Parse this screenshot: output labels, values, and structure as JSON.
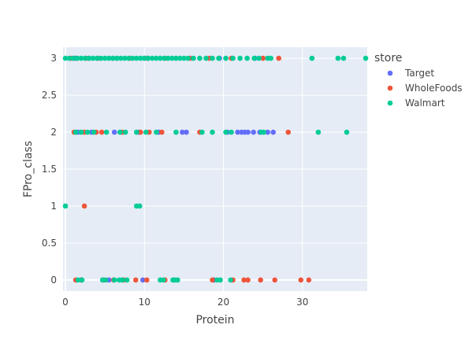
{
  "chart_data": {
    "type": "scatter",
    "xlabel": "Protein",
    "ylabel": "FPro_class",
    "xlim": [
      -0.3,
      38.2
    ],
    "ylim": [
      -0.15,
      3.15
    ],
    "x_ticks": [
      0,
      10,
      20,
      30
    ],
    "y_ticks": [
      0,
      0.5,
      1,
      1.5,
      2,
      2.5,
      3
    ],
    "x_tick_labels": [
      "0",
      "10",
      "20",
      "30"
    ],
    "y_tick_labels": [
      "0",
      "0.5",
      "1",
      "1.5",
      "2",
      "2.5",
      "3"
    ],
    "legend": {
      "title": "store",
      "placement": "right"
    },
    "colors": {
      "plot_bg": "#E5ECF6",
      "grid": "#ffffff"
    },
    "series": [
      {
        "name": "Target",
        "color": "#636EFA",
        "points": [
          [
            1.2,
            3
          ],
          [
            3.0,
            3
          ],
          [
            6.5,
            3
          ],
          [
            10.0,
            3
          ],
          [
            14.0,
            3
          ],
          [
            19.5,
            3
          ],
          [
            24.0,
            3
          ],
          [
            1.6,
            2
          ],
          [
            3.3,
            2
          ],
          [
            6.2,
            2
          ],
          [
            9.3,
            2
          ],
          [
            11.8,
            2
          ],
          [
            14.8,
            2
          ],
          [
            15.3,
            2
          ],
          [
            20.5,
            2
          ],
          [
            21.8,
            2
          ],
          [
            22.3,
            2
          ],
          [
            22.7,
            2
          ],
          [
            23.1,
            2
          ],
          [
            23.8,
            2
          ],
          [
            24.6,
            2
          ],
          [
            25.6,
            2
          ],
          [
            26.3,
            2
          ],
          [
            2.0,
            0
          ],
          [
            5.5,
            0
          ],
          [
            9.8,
            0
          ],
          [
            13.7,
            0
          ],
          [
            18.8,
            0
          ]
        ]
      },
      {
        "name": "WholeFoods",
        "color": "#EF553B",
        "points": [
          [
            0.7,
            3
          ],
          [
            1.5,
            3
          ],
          [
            2.6,
            3
          ],
          [
            4.1,
            3
          ],
          [
            6.0,
            3
          ],
          [
            8.1,
            3
          ],
          [
            10.4,
            3
          ],
          [
            12.6,
            3
          ],
          [
            15.8,
            3
          ],
          [
            18.2,
            3
          ],
          [
            21.0,
            3
          ],
          [
            25.0,
            3
          ],
          [
            27.0,
            3
          ],
          [
            1.1,
            2
          ],
          [
            2.4,
            2
          ],
          [
            3.9,
            2
          ],
          [
            4.6,
            2
          ],
          [
            7.2,
            2
          ],
          [
            9.5,
            2
          ],
          [
            10.6,
            2
          ],
          [
            12.2,
            2
          ],
          [
            17.0,
            2
          ],
          [
            28.2,
            2
          ],
          [
            2.4,
            1
          ],
          [
            1.3,
            0
          ],
          [
            2.0,
            0
          ],
          [
            4.8,
            0
          ],
          [
            6.1,
            0
          ],
          [
            7.4,
            0
          ],
          [
            8.9,
            0
          ],
          [
            10.3,
            0
          ],
          [
            12.6,
            0
          ],
          [
            18.6,
            0
          ],
          [
            21.2,
            0
          ],
          [
            22.6,
            0
          ],
          [
            23.1,
            0
          ],
          [
            24.7,
            0
          ],
          [
            26.5,
            0
          ],
          [
            29.8,
            0
          ],
          [
            30.8,
            0
          ]
        ]
      },
      {
        "name": "Walmart",
        "color": "#00CC96",
        "points": [
          [
            0.0,
            3
          ],
          [
            0.5,
            3
          ],
          [
            1.0,
            3
          ],
          [
            1.5,
            3
          ],
          [
            2.0,
            3
          ],
          [
            2.5,
            3
          ],
          [
            3.0,
            3
          ],
          [
            3.5,
            3
          ],
          [
            4.0,
            3
          ],
          [
            4.5,
            3
          ],
          [
            5.0,
            3
          ],
          [
            5.5,
            3
          ],
          [
            6.0,
            3
          ],
          [
            6.5,
            3
          ],
          [
            7.0,
            3
          ],
          [
            7.5,
            3
          ],
          [
            8.0,
            3
          ],
          [
            8.5,
            3
          ],
          [
            9.0,
            3
          ],
          [
            9.5,
            3
          ],
          [
            10.0,
            3
          ],
          [
            10.5,
            3
          ],
          [
            11.0,
            3
          ],
          [
            11.5,
            3
          ],
          [
            12.0,
            3
          ],
          [
            12.5,
            3
          ],
          [
            13.0,
            3
          ],
          [
            13.5,
            3
          ],
          [
            14.0,
            3
          ],
          [
            14.5,
            3
          ],
          [
            15.0,
            3
          ],
          [
            15.5,
            3
          ],
          [
            16.2,
            3
          ],
          [
            17.0,
            3
          ],
          [
            17.8,
            3
          ],
          [
            18.6,
            3
          ],
          [
            19.4,
            3
          ],
          [
            20.3,
            3
          ],
          [
            21.2,
            3
          ],
          [
            22.1,
            3
          ],
          [
            23.0,
            3
          ],
          [
            23.9,
            3
          ],
          [
            24.5,
            3
          ],
          [
            25.6,
            3
          ],
          [
            26.0,
            3
          ],
          [
            31.2,
            3
          ],
          [
            34.5,
            3
          ],
          [
            35.2,
            3
          ],
          [
            38.0,
            3
          ],
          [
            1.3,
            2
          ],
          [
            2.0,
            2
          ],
          [
            2.8,
            2
          ],
          [
            3.6,
            2
          ],
          [
            5.2,
            2
          ],
          [
            6.9,
            2
          ],
          [
            7.6,
            2
          ],
          [
            9.0,
            2
          ],
          [
            10.2,
            2
          ],
          [
            11.5,
            2
          ],
          [
            14.0,
            2
          ],
          [
            17.3,
            2
          ],
          [
            18.6,
            2
          ],
          [
            20.3,
            2
          ],
          [
            21.0,
            2
          ],
          [
            24.8,
            2
          ],
          [
            25.1,
            2
          ],
          [
            32.0,
            2
          ],
          [
            35.6,
            2
          ],
          [
            0.0,
            1
          ],
          [
            9.0,
            1
          ],
          [
            9.4,
            1
          ],
          [
            1.6,
            0
          ],
          [
            2.1,
            0
          ],
          [
            4.7,
            0
          ],
          [
            5.1,
            0
          ],
          [
            6.2,
            0
          ],
          [
            6.8,
            0
          ],
          [
            7.2,
            0
          ],
          [
            7.8,
            0
          ],
          [
            12.0,
            0
          ],
          [
            12.4,
            0
          ],
          [
            13.6,
            0
          ],
          [
            13.9,
            0
          ],
          [
            14.2,
            0
          ],
          [
            19.2,
            0
          ],
          [
            19.6,
            0
          ],
          [
            20.9,
            0
          ]
        ]
      }
    ]
  }
}
